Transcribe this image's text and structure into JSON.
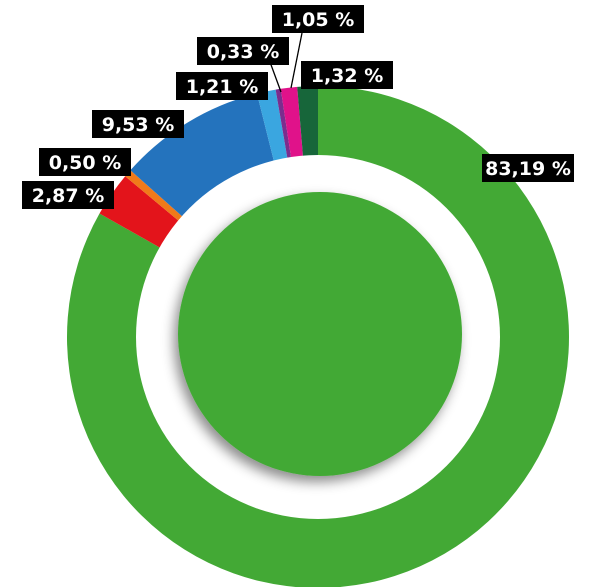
{
  "chart_data": {
    "type": "donut",
    "values": [
      83.19,
      2.87,
      0.5,
      9.53,
      1.21,
      0.33,
      1.05,
      1.32
    ],
    "value_labels": [
      "83,19 %",
      "2,87 %",
      "0,50 %",
      "9,53 %",
      "1,21 %",
      "0,33 %",
      "1,05 %",
      "1,32 %"
    ],
    "colors": [
      "#43a935",
      "#e3141b",
      "#f07a1a",
      "#2473bd",
      "#3aa6e0",
      "#7b2d8e",
      "#e0128a",
      "#17663a"
    ]
  }
}
